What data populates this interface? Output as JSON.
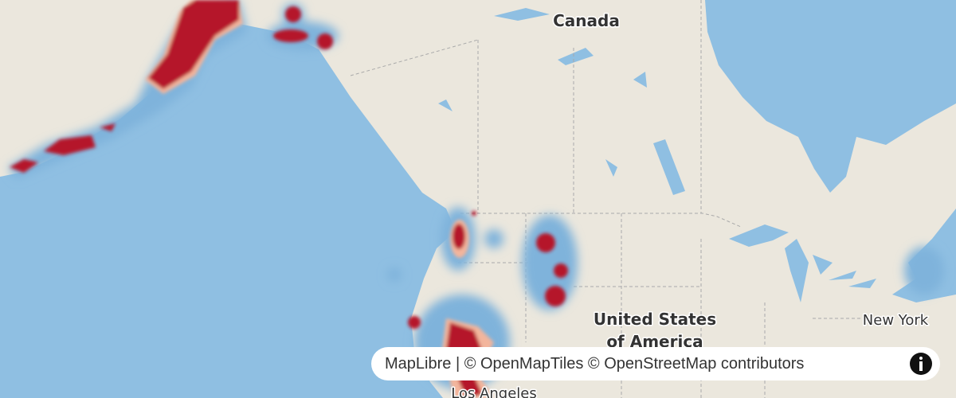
{
  "labels": {
    "country_canada": "Canada",
    "country_usa_line1": "United States",
    "country_usa_line2": "of America",
    "city_new_york": "New York",
    "city_los_angeles": "Los Angeles"
  },
  "attribution": {
    "parts": [
      "MapLibre",
      " | © ",
      "OpenMapTiles",
      " © ",
      "OpenStreetMap contributors"
    ]
  }
}
